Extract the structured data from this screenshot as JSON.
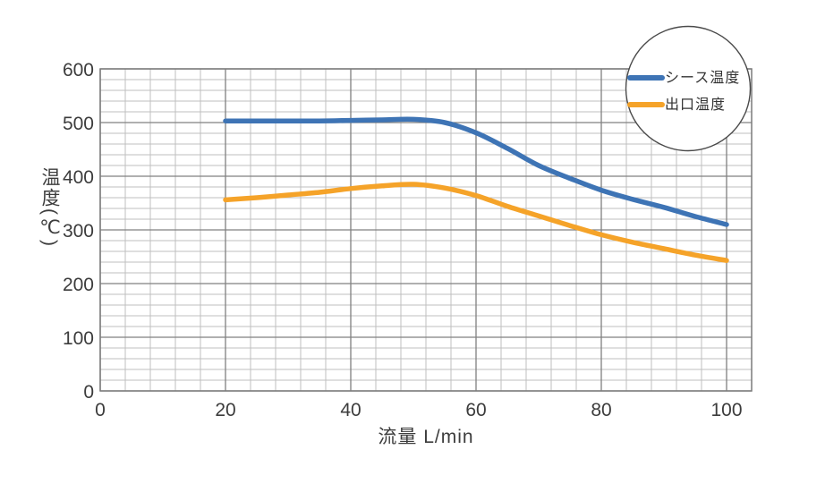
{
  "page": {
    "background": "#ffffff"
  },
  "chart_data": {
    "type": "line",
    "title": "",
    "xlabel": "流量 L/min",
    "ylabel": "温度(℃)",
    "xlim": [
      0,
      104
    ],
    "ylim": [
      0,
      600
    ],
    "x_major_ticks": [
      0,
      20,
      40,
      60,
      80,
      100
    ],
    "y_major_ticks": [
      0,
      100,
      200,
      300,
      400,
      500,
      600
    ],
    "x_minor_step": 4,
    "y_minor_step": 20,
    "grid": "both-minor-and-major",
    "legend_position": "top-right-circle-badge",
    "series": [
      {
        "name": "シース温度",
        "color": "#3E74B5",
        "x": [
          20,
          25,
          30,
          35,
          40,
          45,
          50,
          55,
          60,
          65,
          70,
          75,
          80,
          85,
          90,
          95,
          100
        ],
        "y": [
          503,
          503,
          503,
          503,
          504,
          505,
          506,
          500,
          481,
          452,
          420,
          396,
          374,
          357,
          342,
          325,
          310
        ]
      },
      {
        "name": "出口温度",
        "color": "#F5A329",
        "x": [
          20,
          25,
          30,
          35,
          40,
          45,
          50,
          55,
          60,
          65,
          70,
          75,
          80,
          85,
          90,
          95,
          100
        ],
        "y": [
          356,
          360,
          365,
          370,
          377,
          382,
          385,
          378,
          364,
          344,
          326,
          308,
          291,
          277,
          265,
          253,
          243
        ]
      }
    ]
  },
  "colors": {
    "grid_minor": "#bfbfbf",
    "grid_major": "#808080",
    "axis_border": "#7a7a7a",
    "tick_label": "#3c3c3c",
    "legend_border": "#4a4a4a",
    "legend_bg": "#ffffff",
    "legend_text": "#333333"
  }
}
